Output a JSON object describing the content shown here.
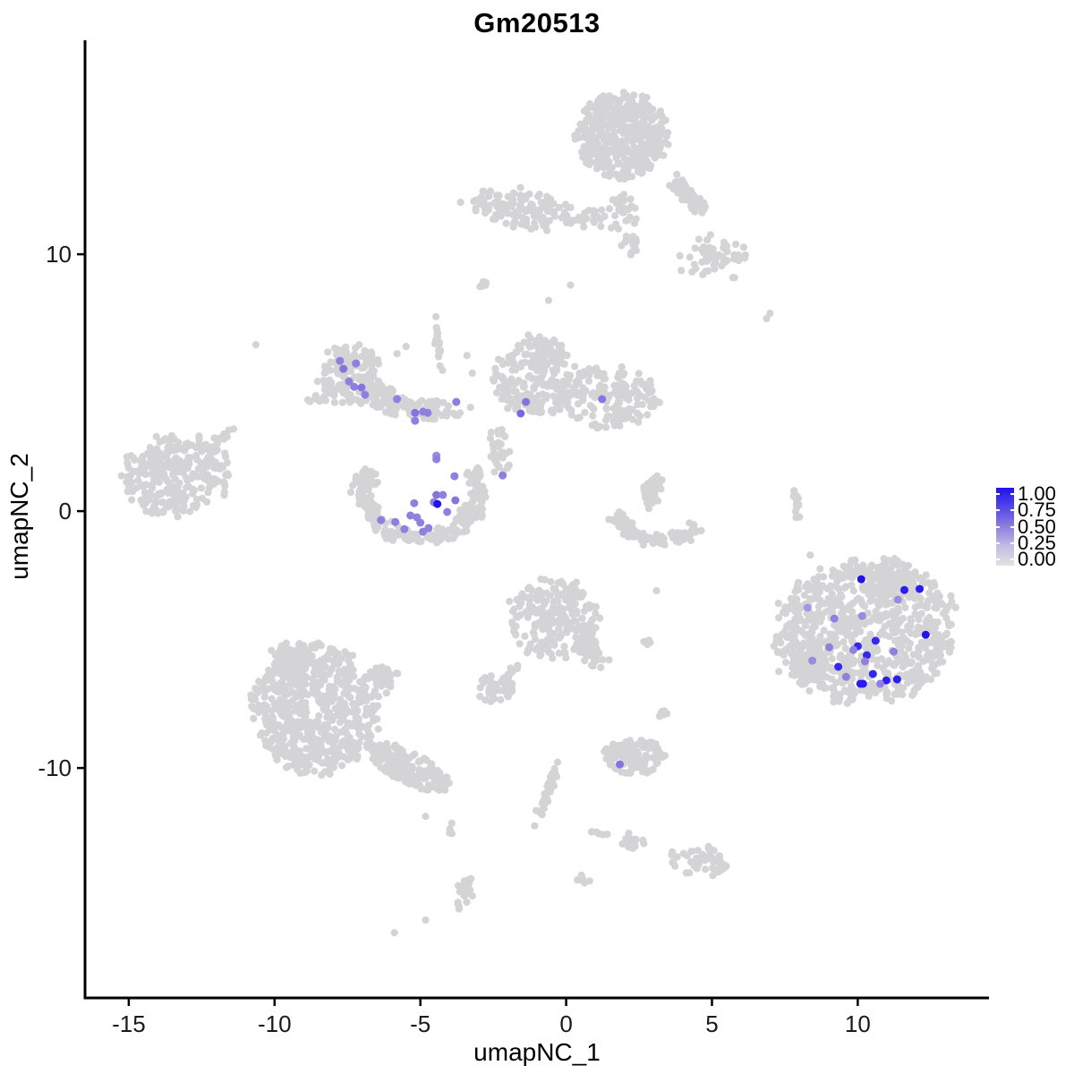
{
  "title": "Gm20513",
  "x_axis": {
    "label": "umapNC_1",
    "ticks": [
      "-15",
      "-10",
      "-5",
      "0",
      "5",
      "10"
    ],
    "tick_values": [
      -15,
      -10,
      -5,
      0,
      5,
      10
    ]
  },
  "y_axis": {
    "label": "umapNC_2",
    "ticks": [
      "10",
      "0",
      "-10"
    ],
    "tick_values": [
      10,
      0,
      -10
    ]
  },
  "legend": {
    "tick_labels": [
      "1.00",
      "0.75",
      "0.50",
      "0.25",
      "0.00"
    ],
    "tick_values": [
      1.0,
      0.75,
      0.5,
      0.25,
      0.0
    ]
  },
  "colors": {
    "background_point": "#D4D4D6",
    "axis_line": "#000000",
    "tick_text": "#1a1a1a",
    "gradient_stops": [
      [
        0,
        "#E2E2E2"
      ],
      [
        0.25,
        "#C4BCE4"
      ],
      [
        0.5,
        "#8F7FDE"
      ],
      [
        0.75,
        "#5347E8"
      ],
      [
        1,
        "#2013F0"
      ]
    ]
  },
  "chart_data": {
    "type": "scatter",
    "title": "Gm20513",
    "xlabel": "umapNC_1",
    "ylabel": "umapNC_2",
    "xlim": [
      -16.5,
      14.5
    ],
    "ylim": [
      -18.95,
      18.33
    ],
    "legend_scale": {
      "min": 0.0,
      "max": 1.0,
      "low_color": "lightgrey",
      "high_color": "blue"
    },
    "background_clusters": [
      {
        "name": "top-main",
        "cx": 1.93,
        "cy": 14.6,
        "rx": 1.55,
        "ry": 1.65,
        "n": 430,
        "shape": "uniform"
      },
      {
        "name": "top-branch",
        "cx": 4.29,
        "cy": 12.16,
        "rx": 1.35,
        "ry": 0.38,
        "angle": -52,
        "n": 90,
        "shape": "gauss"
      },
      {
        "name": "top-fringe",
        "cx": 5.15,
        "cy": 9.97,
        "rx": 1.55,
        "ry": 1.25,
        "n": 55,
        "shape": "gauss"
      },
      {
        "name": "top-bridge",
        "cx": 1.9,
        "cy": 11.7,
        "rx": 0.85,
        "ry": 0.95,
        "n": 26,
        "shape": "gauss"
      },
      {
        "name": "top-bridge2",
        "cx": 2.24,
        "cy": 10.4,
        "rx": 0.5,
        "ry": 0.8,
        "n": 14,
        "shape": "gauss"
      },
      {
        "name": "topleft-band",
        "cx": -1.5,
        "cy": 11.78,
        "rx": 1.9,
        "ry": 0.75,
        "angle": -10,
        "n": 135,
        "shape": "uniform"
      },
      {
        "name": "topleft-ext",
        "cx": 0.86,
        "cy": 11.43,
        "rx": 0.8,
        "ry": 0.5,
        "n": 22,
        "shape": "gauss"
      },
      {
        "name": "streak-mid-top",
        "cx": -2.82,
        "cy": 8.85,
        "rx": 0.4,
        "ry": 0.13,
        "angle": 45,
        "n": 9,
        "shape": "gauss"
      },
      {
        "name": "midleft-main",
        "cx": -7.42,
        "cy": 5.3,
        "rx": 1.1,
        "ry": 1.2,
        "n": 140,
        "shape": "uniform"
      },
      {
        "name": "midleft-arm",
        "cx": -6.23,
        "cy": 4.56,
        "rx": 0.9,
        "ry": 0.5,
        "angle": -18,
        "n": 45,
        "shape": "gauss"
      },
      {
        "name": "midleft-band",
        "cx": -5.06,
        "cy": 4.01,
        "rx": 1.6,
        "ry": 0.42,
        "angle": -7,
        "n": 85,
        "shape": "uniform"
      },
      {
        "name": "midleft-bits",
        "cx": -8.59,
        "cy": 4.39,
        "rx": 0.5,
        "ry": 0.3,
        "n": 10,
        "shape": "gauss"
      },
      {
        "name": "filament",
        "cx": -4.39,
        "cy": 6.55,
        "rx": 0.15,
        "ry": 1.35,
        "angle": 8,
        "n": 22,
        "shape": "gauss"
      },
      {
        "name": "center-left-lobe",
        "cx": -1.07,
        "cy": 5.26,
        "rx": 1.4,
        "ry": 1.6,
        "n": 215,
        "shape": "uniform"
      },
      {
        "name": "center-right-lobe",
        "cx": 1.41,
        "cy": 4.43,
        "rx": 1.75,
        "ry": 1.2,
        "n": 175,
        "shape": "uniform"
      },
      {
        "name": "center-arm",
        "cx": -2.27,
        "cy": 2.19,
        "rx": 0.45,
        "ry": 1.3,
        "angle": 12,
        "n": 40,
        "shape": "gauss"
      },
      {
        "name": "farleft-main",
        "cx": -13.37,
        "cy": 1.39,
        "rx": 1.85,
        "ry": 1.65,
        "n": 275,
        "shape": "uniform"
      },
      {
        "name": "farleft-streak",
        "cx": -11.84,
        "cy": 2.86,
        "rx": 0.85,
        "ry": 0.28,
        "angle": 45,
        "n": 16,
        "shape": "gauss"
      },
      {
        "name": "crescent",
        "cx": -4.97,
        "cy": 0.73,
        "rx": 2.0,
        "ry": 1.75,
        "a0": 150,
        "a1": 390,
        "w": 0.13,
        "n": 255,
        "shape": "arc"
      },
      {
        "name": "hook-arm",
        "cx": 2.94,
        "cy": 0.77,
        "rx": 0.42,
        "ry": 0.9,
        "angle": -15,
        "n": 55,
        "shape": "gauss"
      },
      {
        "name": "hook-bowl",
        "cx": 3.22,
        "cy": -0.03,
        "rx": 1.5,
        "ry": 1.1,
        "a0": 180,
        "a1": 330,
        "w": 0.15,
        "n": 120,
        "shape": "arc"
      },
      {
        "name": "right-streak",
        "cx": 7.91,
        "cy": 0.24,
        "rx": 0.15,
        "ry": 0.95,
        "angle": 10,
        "n": 15,
        "shape": "gauss"
      },
      {
        "name": "right-main",
        "cx": 10.28,
        "cy": -4.7,
        "rx": 3.05,
        "ry": 2.8,
        "n": 800,
        "shape": "uniform"
      },
      {
        "name": "right-top-lobe",
        "cx": 11.13,
        "cy": -2.58,
        "rx": 1.4,
        "ry": 0.9,
        "n": 70,
        "shape": "gauss"
      },
      {
        "name": "right-left-lobe",
        "cx": 8.16,
        "cy": -5.96,
        "rx": 1.1,
        "ry": 1.1,
        "n": 70,
        "shape": "gauss"
      },
      {
        "name": "centerbottom-main",
        "cx": -0.43,
        "cy": -4.15,
        "rx": 1.55,
        "ry": 1.55,
        "n": 235,
        "shape": "uniform"
      },
      {
        "name": "centerbottom-tail",
        "cx": 0.8,
        "cy": -5.44,
        "rx": 0.55,
        "ry": 0.95,
        "angle": 28,
        "n": 45,
        "shape": "gauss"
      },
      {
        "name": "small-pair",
        "cx": 2.76,
        "cy": -5.09,
        "rx": 0.3,
        "ry": 0.18,
        "n": 6,
        "shape": "gauss"
      },
      {
        "name": "small-blob",
        "cx": -2.45,
        "cy": -6.9,
        "rx": 0.62,
        "ry": 0.58,
        "n": 46,
        "shape": "uniform"
      },
      {
        "name": "small-blob-streak",
        "cx": -1.81,
        "cy": -6.2,
        "rx": 0.5,
        "ry": 0.18,
        "angle": 38,
        "n": 9,
        "shape": "gauss"
      },
      {
        "name": "tiny-blob",
        "cx": 3.37,
        "cy": -7.8,
        "rx": 0.26,
        "ry": 0.26,
        "n": 7,
        "shape": "gauss"
      },
      {
        "name": "bottomleft-core",
        "cx": -8.59,
        "cy": -7.7,
        "rx": 2.15,
        "ry": 2.5,
        "n": 600,
        "shape": "uniform"
      },
      {
        "name": "bottomleft-top-lobe",
        "cx": -9.42,
        "cy": -5.71,
        "rx": 0.95,
        "ry": 0.9,
        "n": 80,
        "shape": "gauss"
      },
      {
        "name": "bottomleft-tail",
        "cx": -5.52,
        "cy": -9.93,
        "rx": 1.7,
        "ry": 0.6,
        "angle": -30,
        "n": 145,
        "shape": "uniform"
      },
      {
        "name": "bottomleft-fringe",
        "cx": -6.26,
        "cy": -6.48,
        "rx": 0.8,
        "ry": 0.75,
        "n": 35,
        "shape": "gauss"
      },
      {
        "name": "bottomcenter",
        "cx": 2.33,
        "cy": -9.58,
        "rx": 1.05,
        "ry": 0.68,
        "n": 110,
        "shape": "uniform"
      },
      {
        "name": "diag-streak",
        "cx": -0.58,
        "cy": -10.8,
        "rx": 0.18,
        "ry": 1.7,
        "angle": -18,
        "n": 42,
        "shape": "gauss"
      },
      {
        "name": "blob-low",
        "cx": 2.27,
        "cy": -12.93,
        "rx": 0.58,
        "ry": 0.4,
        "angle": -15,
        "n": 26,
        "shape": "gauss"
      },
      {
        "name": "trail-dots",
        "cx": 1.1,
        "cy": -12.54,
        "rx": 0.55,
        "ry": 0.16,
        "angle": -10,
        "n": 7,
        "shape": "gauss"
      },
      {
        "name": "right-bottom-blob",
        "cx": 4.57,
        "cy": -13.62,
        "rx": 1.05,
        "ry": 0.6,
        "angle": -12,
        "n": 48,
        "shape": "uniform"
      },
      {
        "name": "vert-blob",
        "cx": -3.47,
        "cy": -14.67,
        "rx": 0.34,
        "ry": 1.0,
        "angle": -8,
        "n": 34,
        "shape": "gauss"
      },
      {
        "name": "small-streak2",
        "cx": -3.99,
        "cy": -12.44,
        "rx": 0.13,
        "ry": 0.42,
        "n": 7,
        "shape": "gauss"
      },
      {
        "name": "tiny-blob2",
        "cx": 0.58,
        "cy": -14.32,
        "rx": 0.3,
        "ry": 0.24,
        "n": 7,
        "shape": "gauss"
      }
    ],
    "background_singles": [
      [
        -4.82,
        -11.88
      ],
      [
        -5.89,
        -16.41
      ],
      [
        -4.82,
        -15.92
      ],
      [
        -10.64,
        6.48
      ],
      [
        6.99,
        7.7
      ],
      [
        5.77,
        9.09
      ],
      [
        6.87,
        7.49
      ],
      [
        -5.8,
        6.13
      ],
      [
        -5.49,
        6.41
      ],
      [
        -3.4,
        6.06
      ],
      [
        -3.22,
        5.37
      ],
      [
        -3.28,
        4.04
      ],
      [
        -3.62,
        12.02
      ],
      [
        -0.6,
        8.2
      ],
      [
        0.15,
        8.8
      ],
      [
        8.37,
        -1.71
      ],
      [
        -2.1,
        2.9
      ],
      [
        3.1,
        -3.1
      ]
    ],
    "expressing_cells": [
      [
        -7.76,
        5.85,
        0.5
      ],
      [
        -7.21,
        5.75,
        0.5
      ],
      [
        -7.64,
        5.54,
        0.55
      ],
      [
        -7.45,
        5.05,
        0.5
      ],
      [
        -7.27,
        4.84,
        0.5
      ],
      [
        -7.02,
        4.81,
        0.55
      ],
      [
        -6.9,
        4.53,
        0.5
      ],
      [
        -5.8,
        4.36,
        0.5
      ],
      [
        -5.18,
        3.83,
        0.55
      ],
      [
        -4.91,
        3.87,
        0.5
      ],
      [
        -4.75,
        3.83,
        0.5
      ],
      [
        -5.18,
        3.52,
        0.5
      ],
      [
        -3.77,
        4.25,
        0.5
      ],
      [
        -4.45,
        2.16,
        0.45
      ],
      [
        -4.45,
        2.02,
        0.5
      ],
      [
        -3.83,
        1.36,
        0.5
      ],
      [
        -2.18,
        1.39,
        0.5
      ],
      [
        -4.45,
        0.63,
        0.55
      ],
      [
        -4.23,
        0.63,
        0.5
      ],
      [
        -4.54,
        0.35,
        0.5
      ],
      [
        -4.42,
        0.28,
        1.0
      ],
      [
        -3.8,
        0.42,
        0.55
      ],
      [
        -5.21,
        0.31,
        0.5
      ],
      [
        -4.08,
        -0.03,
        0.5
      ],
      [
        -5.34,
        -0.17,
        0.5
      ],
      [
        -5.12,
        -0.24,
        0.5
      ],
      [
        -6.35,
        -0.35,
        0.5
      ],
      [
        -5.86,
        -0.42,
        0.5
      ],
      [
        -5.0,
        -0.45,
        0.5
      ],
      [
        -4.72,
        -0.66,
        0.5
      ],
      [
        -5.55,
        -0.7,
        0.5
      ],
      [
        -4.91,
        -0.8,
        0.5
      ],
      [
        -1.38,
        4.25,
        0.55
      ],
      [
        -1.56,
        3.8,
        0.6
      ],
      [
        1.23,
        4.36,
        0.55
      ],
      [
        10.12,
        -2.65,
        1.0
      ],
      [
        11.6,
        -3.07,
        0.95
      ],
      [
        12.12,
        -3.03,
        0.95
      ],
      [
        12.33,
        -4.81,
        1.0
      ],
      [
        10.61,
        -5.05,
        0.9
      ],
      [
        10.0,
        -5.26,
        0.9
      ],
      [
        10.31,
        -5.61,
        0.9
      ],
      [
        9.33,
        -6.06,
        0.9
      ],
      [
        10.52,
        -6.34,
        0.9
      ],
      [
        10.98,
        -6.59,
        0.95
      ],
      [
        11.35,
        -6.55,
        0.95
      ],
      [
        10.09,
        -6.72,
        0.95
      ],
      [
        10.18,
        -6.72,
        0.95
      ],
      [
        11.38,
        -3.45,
        0.45
      ],
      [
        8.28,
        -3.76,
        0.4
      ],
      [
        9.2,
        -4.18,
        0.5
      ],
      [
        10.15,
        -4.08,
        0.45
      ],
      [
        9.02,
        -5.3,
        0.5
      ],
      [
        9.85,
        -5.4,
        0.5
      ],
      [
        11.23,
        -5.47,
        0.5
      ],
      [
        10.25,
        -5.85,
        0.5
      ],
      [
        8.44,
        -5.82,
        0.45
      ],
      [
        9.6,
        -6.45,
        0.5
      ],
      [
        10.77,
        -6.72,
        0.5
      ],
      [
        1.84,
        -9.86,
        0.55
      ]
    ]
  }
}
